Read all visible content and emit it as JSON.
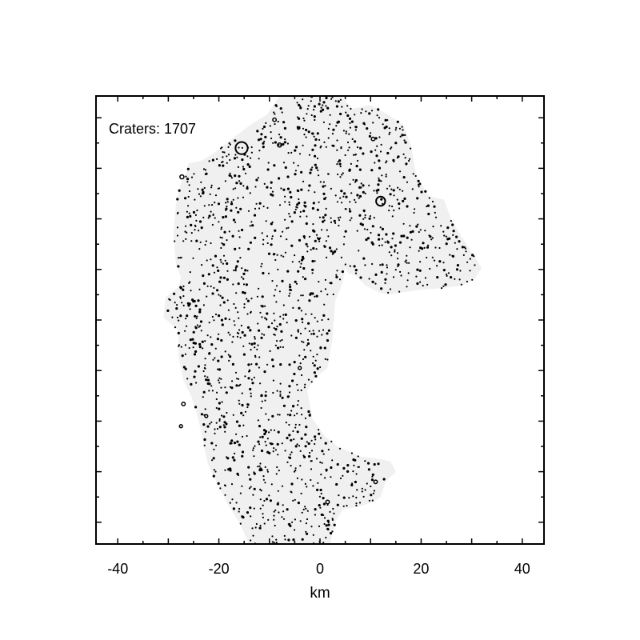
{
  "chart_data": {
    "type": "scatter",
    "annotation": "Craters: 1707",
    "xlabel": "km",
    "ylabel": "",
    "xlim": [
      -44.3,
      44.3
    ],
    "ylim": [
      -44.3,
      44.3
    ],
    "x_ticks": [
      -40,
      -20,
      0,
      20,
      40
    ],
    "x_tick_labels": [
      "-40",
      "-20",
      "0",
      "20",
      "40"
    ],
    "y_ticks": [
      -40,
      -20,
      0,
      20,
      40
    ],
    "y_tick_labels_shown": false,
    "grid": false,
    "crater_count": 1707,
    "region_fill_color": "#f0f0f0",
    "point_color": "#000000",
    "region_outline_km": [
      [
        -13.5,
        38.8
      ],
      [
        -10.5,
        40.6
      ],
      [
        -8.0,
        44.3
      ],
      [
        4.0,
        44.3
      ],
      [
        6.5,
        41.8
      ],
      [
        10.0,
        42.5
      ],
      [
        13.5,
        40.6
      ],
      [
        16.5,
        38.6
      ],
      [
        18.0,
        34.5
      ],
      [
        19.0,
        28.7
      ],
      [
        21.5,
        24.5
      ],
      [
        24.5,
        23.8
      ],
      [
        26.0,
        19.8
      ],
      [
        28.0,
        16.5
      ],
      [
        32.0,
        10.3
      ],
      [
        30.5,
        8.0
      ],
      [
        28.0,
        6.8
      ],
      [
        24.0,
        6.3
      ],
      [
        20.0,
        6.0
      ],
      [
        16.5,
        5.5
      ],
      [
        13.5,
        5.0
      ],
      [
        11.5,
        5.5
      ],
      [
        9.0,
        6.8
      ],
      [
        7.0,
        8.8
      ],
      [
        5.5,
        9.3
      ],
      [
        5.0,
        10.3
      ],
      [
        4.5,
        7.3
      ],
      [
        3.0,
        3.8
      ],
      [
        2.5,
        -3.5
      ],
      [
        1.5,
        -9.5
      ],
      [
        -1.0,
        -11.5
      ],
      [
        -2.5,
        -14.0
      ],
      [
        -1.5,
        -19.5
      ],
      [
        1.0,
        -23.0
      ],
      [
        3.5,
        -25.0
      ],
      [
        8.0,
        -27.0
      ],
      [
        12.0,
        -27.5
      ],
      [
        14.0,
        -28.0
      ],
      [
        15.0,
        -30.0
      ],
      [
        13.0,
        -32.0
      ],
      [
        12.0,
        -35.0
      ],
      [
        10.5,
        -36.0
      ],
      [
        7.5,
        -37.0
      ],
      [
        4.5,
        -37.5
      ],
      [
        3.0,
        -40.0
      ],
      [
        2.0,
        -44.3
      ],
      [
        -14.0,
        -44.3
      ],
      [
        -16.0,
        -40.0
      ],
      [
        -18.5,
        -36.0
      ],
      [
        -20.0,
        -33.0
      ],
      [
        -22.0,
        -29.0
      ],
      [
        -23.0,
        -25.0
      ],
      [
        -23.5,
        -22.0
      ],
      [
        -24.5,
        -18.0
      ],
      [
        -25.5,
        -15.0
      ],
      [
        -27.0,
        -12.0
      ],
      [
        -28.0,
        -7.0
      ],
      [
        -28.0,
        -2.0
      ],
      [
        -31.0,
        0.5
      ],
      [
        -30.5,
        4.5
      ],
      [
        -28.0,
        6.5
      ],
      [
        -27.5,
        8.5
      ],
      [
        -28.5,
        11.0
      ],
      [
        -29.0,
        17.0
      ],
      [
        -28.5,
        23.0
      ],
      [
        -27.5,
        27.0
      ],
      [
        -26.5,
        29.0
      ],
      [
        -26.0,
        31.0
      ],
      [
        -23.5,
        31.5
      ],
      [
        -21.0,
        33.0
      ],
      [
        -18.5,
        35.0
      ]
    ],
    "large_craters_km": [
      {
        "x": -15.5,
        "y": 34.0,
        "diameter": 2.4
      },
      {
        "x": 12.0,
        "y": 23.5,
        "diameter": 1.8
      }
    ],
    "medium_craters_km": [
      {
        "x": -27.3,
        "y": 28.3,
        "diameter": 0.8
      },
      {
        "x": -8.0,
        "y": 34.6,
        "diameter": 0.8
      },
      {
        "x": -9.0,
        "y": 39.6,
        "diameter": 0.7
      },
      {
        "x": 10.5,
        "y": 35.8,
        "diameter": 0.7
      },
      {
        "x": -27.0,
        "y": -16.6,
        "diameter": 0.7
      },
      {
        "x": -27.5,
        "y": -21.0,
        "diameter": 0.6
      },
      {
        "x": 1.5,
        "y": -36.0,
        "diameter": 0.7
      },
      {
        "x": 11.0,
        "y": -32.0,
        "diameter": 0.7
      },
      {
        "x": -4.0,
        "y": -9.5,
        "diameter": 0.6
      },
      {
        "x": -22.5,
        "y": -19.0,
        "diameter": 0.6
      }
    ]
  }
}
